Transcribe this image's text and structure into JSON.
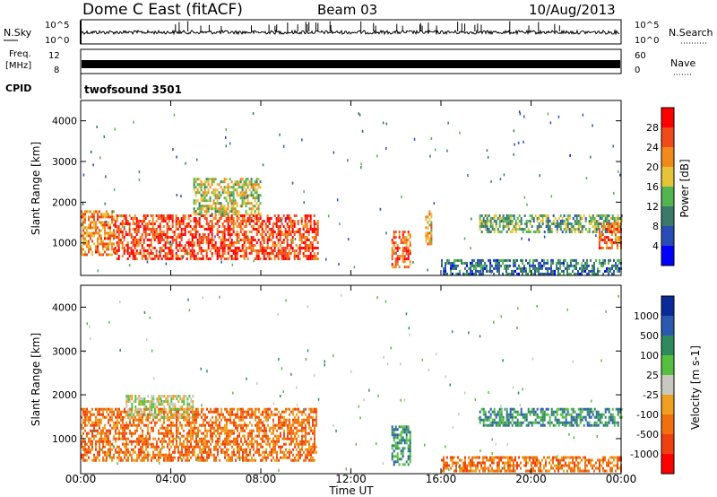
{
  "header": {
    "station": "Dome C East (fitACF)",
    "beam": "Beam 03",
    "date": "10/Aug/2013"
  },
  "top_panels": {
    "nsky": {
      "label": "N.Sky",
      "ticks": [
        "10^5",
        "10^0"
      ]
    },
    "nsearch": {
      "label": "N.Search",
      "ticks": [
        "10^5",
        "10^0"
      ]
    },
    "freq": {
      "label_line1": "Freq.",
      "label_line2": "[MHz]",
      "ticks": [
        "12",
        "8"
      ]
    },
    "nave": {
      "label": "Nave",
      "ticks": [
        "60",
        "0"
      ]
    },
    "cpid": {
      "label": "CPID",
      "value": "twofsound 3501"
    }
  },
  "chart_data": [
    {
      "type": "heatmap",
      "title": "",
      "xlabel": "",
      "ylabel": "Slant Range [km]",
      "xlim": [
        "00:00",
        "00:00"
      ],
      "ylim": [
        200,
        4500
      ],
      "ytick_labels": [
        "1000",
        "2000",
        "3000",
        "4000"
      ],
      "colorbar": {
        "label": "Power [dB]",
        "tick_labels": [
          "4",
          "8",
          "12",
          "16",
          "20",
          "24",
          "28"
        ],
        "range": [
          0,
          30
        ]
      },
      "regions": [
        {
          "t_start": 0.0,
          "t_end": 1.5,
          "range_start": 700,
          "range_end": 1800,
          "value_db": 22
        },
        {
          "t_start": 1.5,
          "t_end": 10.5,
          "range_start": 600,
          "range_end": 1700,
          "value_db": 26
        },
        {
          "t_start": 5.0,
          "t_end": 8.0,
          "range_start": 1700,
          "range_end": 2600,
          "value_db": 16
        },
        {
          "t_start": 13.8,
          "t_end": 14.6,
          "range_start": 400,
          "range_end": 1300,
          "value_db": 24
        },
        {
          "t_start": 15.3,
          "t_end": 15.6,
          "range_start": 1000,
          "range_end": 1800,
          "value_db": 20
        },
        {
          "t_start": 17.7,
          "t_end": 24.0,
          "range_start": 1300,
          "range_end": 1700,
          "value_db": 12
        },
        {
          "t_start": 23.0,
          "t_end": 24.0,
          "range_start": 900,
          "range_end": 1500,
          "value_db": 24
        },
        {
          "t_start": 16.0,
          "t_end": 24.0,
          "range_start": 250,
          "range_end": 600,
          "value_db": 8
        }
      ]
    },
    {
      "type": "heatmap",
      "title": "",
      "xlabel": "Time UT",
      "ylabel": "Slant Range [km]",
      "xlim": [
        "00:00",
        "00:00"
      ],
      "ylim": [
        200,
        4500
      ],
      "xtick_labels": [
        "00:00",
        "04:00",
        "08:00",
        "12:00",
        "16:00",
        "20:00",
        "00:00"
      ],
      "ytick_labels": [
        "1000",
        "2000",
        "3000",
        "4000"
      ],
      "colorbar": {
        "label": "Velocity [m s-1]",
        "tick_labels": [
          "1000",
          "500",
          "100",
          "25",
          "-25",
          "-100",
          "-500",
          "-1000"
        ]
      },
      "regions": [
        {
          "t_start": 0.0,
          "t_end": 10.5,
          "range_start": 500,
          "range_end": 1700,
          "value_ms": -150
        },
        {
          "t_start": 2.0,
          "t_end": 5.0,
          "range_start": 1500,
          "range_end": 2000,
          "value_ms": 0
        },
        {
          "t_start": 13.8,
          "t_end": 14.6,
          "range_start": 400,
          "range_end": 1300,
          "value_ms": 150
        },
        {
          "t_start": 17.7,
          "t_end": 24.0,
          "range_start": 1300,
          "range_end": 1700,
          "value_ms": 100
        },
        {
          "t_start": 16.0,
          "t_end": 24.0,
          "range_start": 250,
          "range_end": 600,
          "value_ms": -200
        }
      ]
    }
  ],
  "colors": {
    "power": [
      "#0000ff",
      "#2a4db5",
      "#3a7a6a",
      "#52b552",
      "#e6c43a",
      "#f08a1a",
      "#f04a1a",
      "#ff0000"
    ],
    "velocity": [
      "#0a2a9a",
      "#2a5ab0",
      "#2e8a5a",
      "#55c040",
      "#c8c8c0",
      "#f0a020",
      "#f07010",
      "#f04010",
      "#ff0000"
    ]
  }
}
